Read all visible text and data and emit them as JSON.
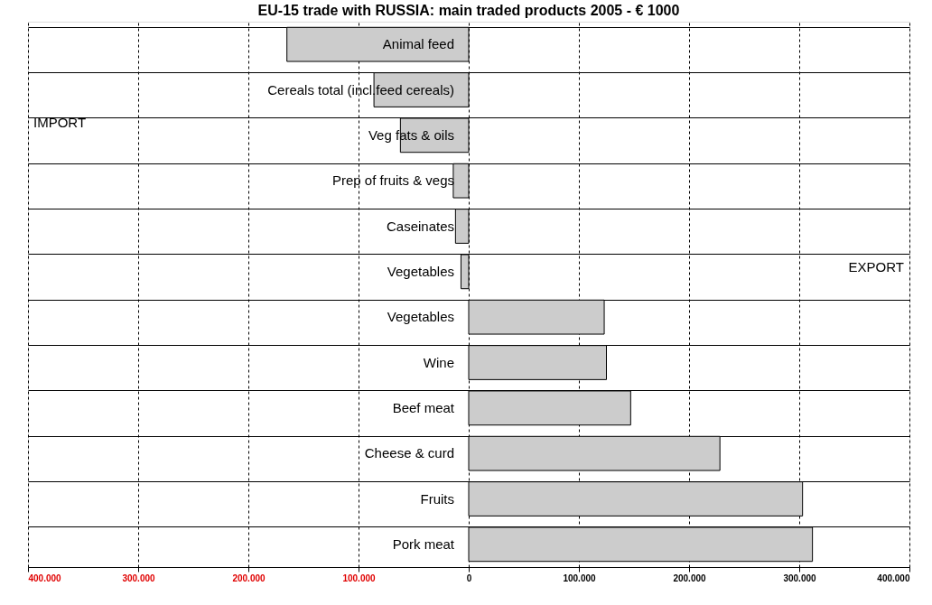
{
  "chart_data": {
    "type": "bar",
    "orientation": "horizontal",
    "title": "EU-15 trade with RUSSIA: main traded products 2005 - € 1000",
    "categories": [
      "Animal feed",
      "Cereals total (incl.feed cereals)",
      "Veg fats & oils",
      "Prep of fruits & vegs",
      "Caseinates",
      "Vegetables",
      "Vegetables",
      "Wine",
      "Beef meat",
      "Cheese & curd",
      "Fruits",
      "Pork meat"
    ],
    "values": [
      -165000,
      -86000,
      -62000,
      -14000,
      -12000,
      -7000,
      123000,
      125000,
      147000,
      228000,
      303000,
      312000
    ],
    "color": "#cccccc",
    "xlim": [
      -400000,
      400000
    ],
    "xticks": [
      {
        "value": -400000,
        "label": "400.000"
      },
      {
        "value": -300000,
        "label": "300.000"
      },
      {
        "value": -200000,
        "label": "200.000"
      },
      {
        "value": -100000,
        "label": "100.000"
      },
      0,
      {
        "value": 100000,
        "label": "100.000"
      },
      {
        "value": 200000,
        "label": "200.000"
      },
      {
        "value": 300000,
        "label": "300.000"
      },
      {
        "value": 400000,
        "label": "400.000"
      }
    ],
    "annotations": [
      "IMPORT",
      "EXPORT"
    ],
    "grid": true
  }
}
